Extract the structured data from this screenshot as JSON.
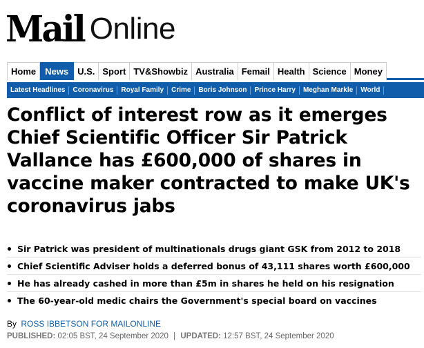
{
  "brand": {
    "logo_mail": "Mail",
    "logo_online": "Online"
  },
  "primary_nav": [
    {
      "label": "Home",
      "active": false
    },
    {
      "label": "News",
      "active": true
    },
    {
      "label": "U.S.",
      "active": false
    },
    {
      "label": "Sport",
      "active": false
    },
    {
      "label": "TV&Showbiz",
      "active": false
    },
    {
      "label": "Australia",
      "active": false
    },
    {
      "label": "Femail",
      "active": false
    },
    {
      "label": "Health",
      "active": false
    },
    {
      "label": "Science",
      "active": false
    },
    {
      "label": "Money",
      "active": false
    }
  ],
  "secondary_nav": [
    "Latest Headlines",
    "Coronavirus",
    "Royal Family",
    "Crime",
    "Boris Johnson",
    "Prince Harry",
    "Meghan Markle",
    "World"
  ],
  "article": {
    "headline": "Conflict of interest row as it emerges Chief Scientific Officer Sir Patrick Vallance has £600,000 of shares in vaccine maker contracted to make UK's coronavirus jabs",
    "bullets": [
      "Sir Patrick was president of multinationals drugs giant GSK from 2012 to 2018",
      "Chief Scientific Adviser holds a deferred bonus of 43,111 shares worth £600,000",
      "He has already cashed in more than £5m in shares he held on his resignation",
      "The 60-year-old medic chairs the Government's special board on vaccines"
    ],
    "byline_prefix": "By",
    "byline_author": "Ross Ibbetson for Mailonline",
    "published_label": "PUBLISHED:",
    "published_value": "02:05 BST, 24 September 2020",
    "separator": "|",
    "updated_label": "UPDATED:",
    "updated_value": "12:57 BST, 24 September 2020"
  },
  "colors": {
    "accent": "#0f5dab",
    "text": "#000000",
    "muted": "#666666"
  }
}
